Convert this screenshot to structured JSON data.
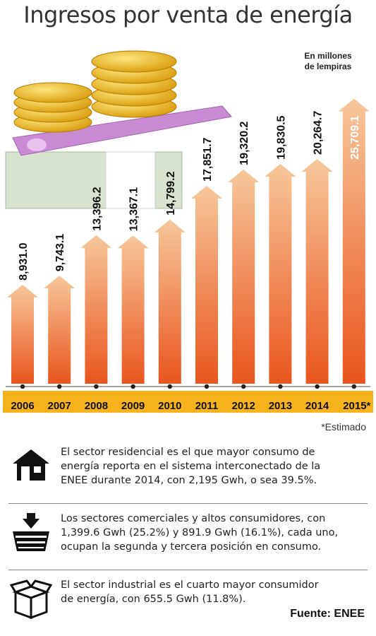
{
  "title": "Ingresos por venta de energía",
  "unit_note_line1": "En millones",
  "unit_note_line2": "de lempiras",
  "estimado_note": "*Estimado",
  "chart_data": {
    "type": "bar",
    "title": "Ingresos por venta de energía",
    "ylabel": "En millones de lempiras",
    "categories": [
      "2006",
      "2007",
      "2008",
      "2009",
      "2010",
      "2011",
      "2012",
      "2013",
      "2014",
      "2015*"
    ],
    "values": [
      8931.0,
      9743.1,
      13396.2,
      13367.1,
      14799.2,
      17851.7,
      19320.2,
      19830.5,
      20264.7,
      25709.1
    ],
    "value_labels": [
      "8,931.0",
      "9,743.1",
      "13,396.2",
      "13,367.1",
      "14,799.2",
      "17,851.7",
      "19,320.2",
      "19,830.5",
      "20,264.7",
      "25,709.1"
    ],
    "ylim": [
      0,
      26000
    ],
    "grid": false,
    "legend": "none",
    "colors": {
      "bar_top": "#f8c79a",
      "bar_bottom": "#e8551d",
      "year_band": "#f5b21b",
      "estimate_label": "#ffffff",
      "value_label": "#111111"
    }
  },
  "notes": [
    {
      "icon": "house-icon",
      "lines": [
        "El sector residencial es el que mayor consumo de",
        "energía reporta en el sistema interconectado de la",
        "ENEE durante 2014, con 2,195 Gwh, o sea 39.5%."
      ]
    },
    {
      "icon": "shopping-basket-icon",
      "lines": [
        "Los sectores comerciales y altos consumidores, con",
        "1,399.6 Gwh (25.2%) y 891.9 Gwh (16.1%), cada uno,",
        "ocupan la segunda y tercera posición en consumo."
      ]
    },
    {
      "icon": "box-icon",
      "lines": [
        "El sector industrial es el cuarto mayor consumidor",
        "de energía, con 655.5 Gwh (11.8%)."
      ]
    }
  ],
  "source": "Fuente: ENEE"
}
